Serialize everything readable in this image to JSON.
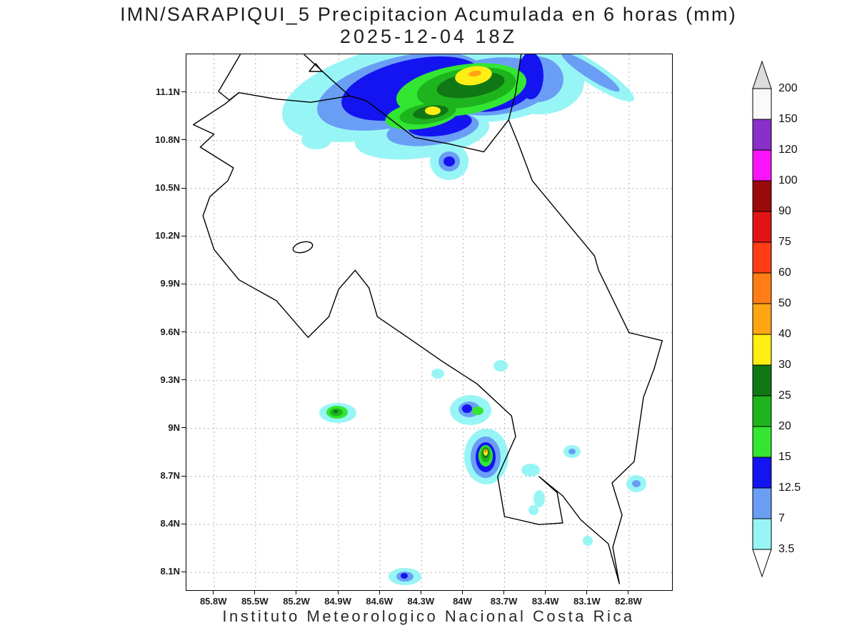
{
  "header": {
    "title_line1": "IMN/SARAPIQUI_5 Precipitacion Acumulada en 6 horas (mm)",
    "title_line2": "2025-12-04 18Z"
  },
  "footer": {
    "caption": "Instituto Meteorologico Nacional Costa Rica"
  },
  "axes": {
    "lat_ticks": [
      {
        "value": 11.1,
        "label": "11.1N"
      },
      {
        "value": 10.8,
        "label": "10.8N"
      },
      {
        "value": 10.5,
        "label": "10.5N"
      },
      {
        "value": 10.2,
        "label": "10.2N"
      },
      {
        "value": 9.9,
        "label": "9.9N"
      },
      {
        "value": 9.6,
        "label": "9.6N"
      },
      {
        "value": 9.3,
        "label": "9.3N"
      },
      {
        "value": 9.0,
        "label": "9N"
      },
      {
        "value": 8.7,
        "label": "8.7N"
      },
      {
        "value": 8.4,
        "label": "8.4N"
      },
      {
        "value": 8.1,
        "label": "8.1N"
      }
    ],
    "lon_ticks": [
      {
        "value": -85.8,
        "label": "85.8W"
      },
      {
        "value": -85.5,
        "label": "85.5W"
      },
      {
        "value": -85.2,
        "label": "85.2W"
      },
      {
        "value": -84.9,
        "label": "84.9W"
      },
      {
        "value": -84.6,
        "label": "84.6W"
      },
      {
        "value": -84.3,
        "label": "84.3W"
      },
      {
        "value": -84.0,
        "label": "84W"
      },
      {
        "value": -83.7,
        "label": "83.7W"
      },
      {
        "value": -83.4,
        "label": "83.4W"
      },
      {
        "value": -83.1,
        "label": "83.1W"
      },
      {
        "value": -82.8,
        "label": "82.8W"
      }
    ]
  },
  "colorbar": {
    "boundaries_top_to_bottom": [
      "200",
      "150",
      "120",
      "100",
      "90",
      "75",
      "60",
      "50",
      "40",
      "30",
      "25",
      "20",
      "15",
      "12.5",
      "7",
      "3.5"
    ],
    "segment_colors_top_to_bottom": [
      "#fafafa",
      "#8a2fc9",
      "#fa14fa",
      "#9b0a0a",
      "#e11414",
      "#ff3c14",
      "#ff7d14",
      "#ffa514",
      "#ffee14",
      "#0f7814",
      "#1eb41e",
      "#32e632",
      "#1414f0",
      "#6a9ef5",
      "#98f5f5"
    ],
    "arrow_top_color": "#dcdcdc",
    "arrow_bottom_color": "#ffffff"
  },
  "palette": {
    "3.5": "#98f5f5",
    "7": "#6a9ef5",
    "12.5": "#1414f0",
    "15": "#32e632",
    "20": "#1eb41e",
    "25": "#0f7814",
    "30": "#ffee14",
    "40": "#ffa514",
    "50": "#ff7d14",
    "60": "#ff3c14",
    "75": "#e11414",
    "90": "#9b0a0a",
    "100": "#fa14fa",
    "120": "#8a2fc9",
    "150": "#fafafa"
  },
  "chart_data": {
    "type": "heatmap",
    "subtype": "filled-contour precipitation map over Costa Rica",
    "title": "IMN/SARAPIQUI_5 Precipitacion Acumulada en 6 horas (mm)",
    "valid_time": "2025-12-04 18Z",
    "units": "mm",
    "x_tick_labels": [
      "85.8W",
      "85.5W",
      "85.2W",
      "84.9W",
      "84.6W",
      "84.3W",
      "84W",
      "83.7W",
      "83.4W",
      "83.1W",
      "82.8W"
    ],
    "y_tick_labels": [
      "11.1N",
      "10.8N",
      "10.5N",
      "10.2N",
      "9.9N",
      "9.6N",
      "9.3N",
      "9N",
      "8.7N",
      "8.4N",
      "8.1N"
    ],
    "contour_levels_mm": [
      3.5,
      7,
      12.5,
      15,
      20,
      25,
      30,
      40,
      50,
      60,
      75,
      90,
      100,
      120,
      150,
      200
    ],
    "grid": "dashed",
    "legend_position": "right-colorbar",
    "features": [
      {
        "area": "Northern Caribbean coast / Nicaragua border band, 10.7N-11.3N between 84.8W and 82.9W",
        "max_level_mm": 40
      },
      {
        "area": "Cell near 9.1N 84.9W",
        "max_level_mm": 25
      },
      {
        "area": "Cell near 9.0N 83.95W",
        "max_level_mm": 20
      },
      {
        "area": "Osa / Golfo Dulce cell near 8.75N 83.8W",
        "max_level_mm": 50
      },
      {
        "area": "Cell near 8.05N 84.45W",
        "max_level_mm": 15
      },
      {
        "area": "Scattered light cells (3.5-7 mm) along southern Pacific coast and Panama border",
        "max_level_mm": 7
      }
    ],
    "caption": "Instituto Meteorologico Nacional Costa Rica"
  }
}
